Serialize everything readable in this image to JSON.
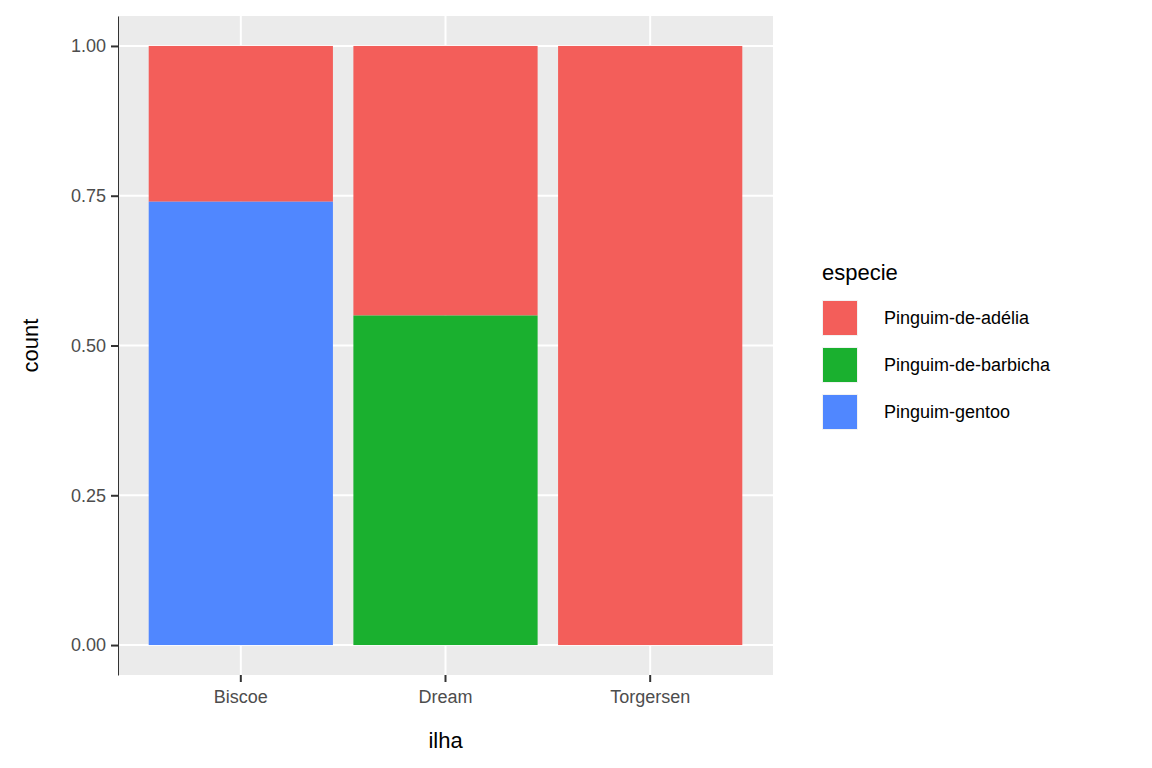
{
  "chart_data": {
    "type": "bar",
    "stacked": true,
    "x_label": "ilha",
    "y_label": "count",
    "legend_title": "especie",
    "categories": [
      "Biscoe",
      "Dream",
      "Torgersen"
    ],
    "series": [
      {
        "name": "Pinguim-de-adélia",
        "color": "#F35E5A",
        "values": [
          0.26,
          0.45,
          1.0
        ]
      },
      {
        "name": "Pinguim-de-barbicha",
        "color": "#1AB02F",
        "values": [
          0,
          0.55,
          0
        ]
      },
      {
        "name": "Pinguim-gentoo",
        "color": "#5087FF",
        "values": [
          0.74,
          0,
          0
        ]
      }
    ],
    "ylim": [
      -0.05,
      1.05
    ],
    "yticks": [
      {
        "value": 0,
        "label": "0.00"
      },
      {
        "value": 0.25,
        "label": "0.25"
      },
      {
        "value": 0.5,
        "label": "0.50"
      },
      {
        "value": 0.75,
        "label": "0.75"
      },
      {
        "value": 1,
        "label": "1.00"
      }
    ],
    "grid": true,
    "legend": "right"
  }
}
